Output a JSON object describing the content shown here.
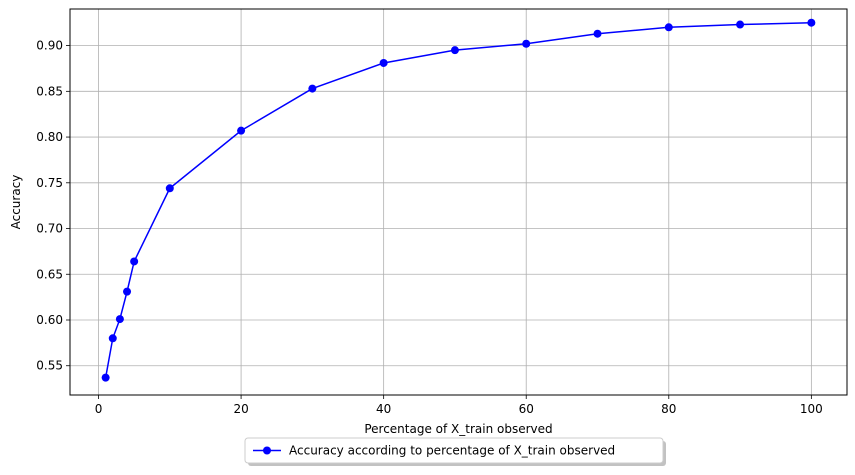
{
  "chart_data": {
    "type": "line",
    "title": "",
    "xlabel": "Percentage of X_train observed",
    "ylabel": "Accuracy",
    "xlim": [
      -4,
      105
    ],
    "ylim": [
      0.518,
      0.94
    ],
    "xticks": [
      0,
      20,
      40,
      60,
      80,
      100
    ],
    "yticks": [
      0.55,
      0.6,
      0.65,
      0.7,
      0.75,
      0.8,
      0.85,
      0.9
    ],
    "xtick_labels": [
      "0",
      "20",
      "40",
      "60",
      "80",
      "100"
    ],
    "ytick_labels": [
      "0.55",
      "0.60",
      "0.65",
      "0.70",
      "0.75",
      "0.80",
      "0.85",
      "0.90"
    ],
    "grid": true,
    "legend_position": "bottom-center-outside",
    "series": [
      {
        "name": "Accuracy according to percentage of X_train observed",
        "color": "#0000ff",
        "marker": "circle",
        "x": [
          1,
          2,
          3,
          4,
          5,
          10,
          20,
          30,
          40,
          50,
          60,
          70,
          80,
          90,
          100
        ],
        "y": [
          0.537,
          0.58,
          0.601,
          0.631,
          0.664,
          0.744,
          0.807,
          0.853,
          0.881,
          0.895,
          0.902,
          0.913,
          0.92,
          0.923,
          0.925
        ]
      }
    ]
  }
}
